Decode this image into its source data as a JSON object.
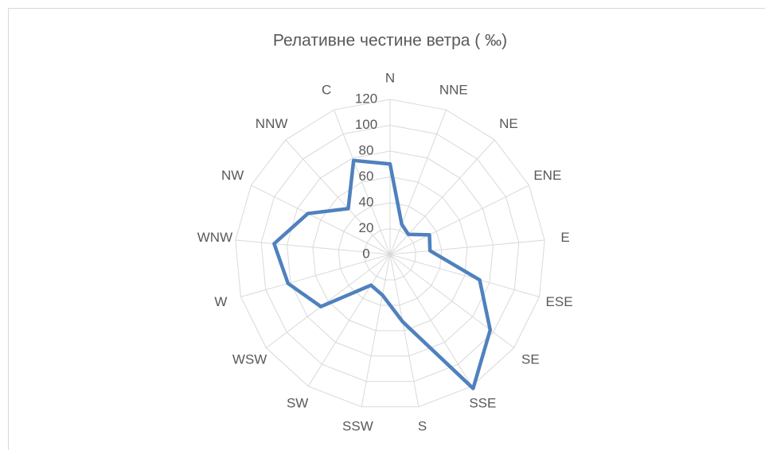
{
  "chart_data": {
    "type": "radar",
    "title": "Релативне честине ветра ( ‰)",
    "categories": [
      "N",
      "NNE",
      "NE",
      "ENE",
      "E",
      "ESE",
      "SE",
      "SSE",
      "S",
      "SSW",
      "SW",
      "WSW",
      "W",
      "WNW",
      "NW",
      "NNW",
      "C"
    ],
    "series": [
      {
        "name": "Релативне честине ветра",
        "color": "#4f81bd",
        "values": [
          70,
          25,
          21,
          34,
          31,
          72,
          97,
          122,
          53,
          32,
          28,
          67,
          82,
          90,
          71,
          48,
          78
        ]
      }
    ],
    "rlim": [
      0,
      120
    ],
    "rticks": [
      0,
      20,
      40,
      60,
      80,
      100,
      120
    ],
    "grid": true
  }
}
